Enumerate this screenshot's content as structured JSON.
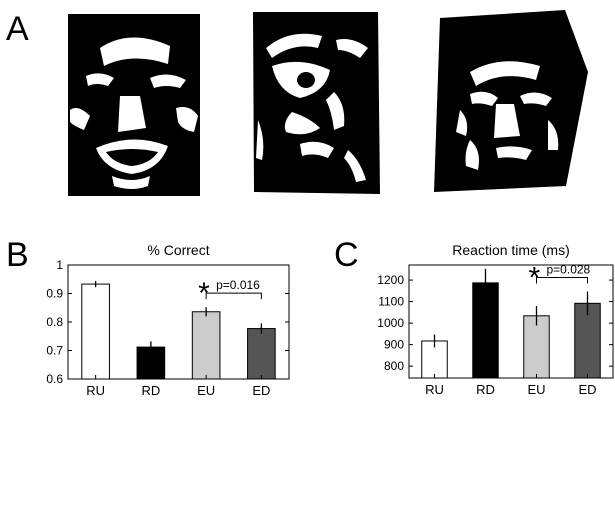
{
  "panel_labels": {
    "a": "A",
    "b": "B",
    "c": "C"
  },
  "faces": [
    {
      "name": "face-1"
    },
    {
      "name": "face-2"
    },
    {
      "name": "face-3"
    }
  ],
  "chart_data": [
    {
      "type": "bar",
      "title": "% Correct",
      "categories": [
        "RU",
        "RD",
        "EU",
        "ED"
      ],
      "values": [
        0.933,
        0.712,
        0.836,
        0.777
      ],
      "errors": [
        0.011,
        0.02,
        0.016,
        0.018
      ],
      "colors": [
        "#ffffff",
        "#000000",
        "#cccccc",
        "#555555"
      ],
      "ylim": [
        0.6,
        1.0
      ],
      "yticks": [
        0.6,
        0.7,
        0.8,
        0.9,
        1.0
      ],
      "ytick_labels": [
        "0.6",
        "0.7",
        "0.8",
        "0.9",
        "1"
      ],
      "bracket": {
        "from": "EU",
        "to": "ED",
        "star": "*",
        "label": "p=0.016"
      }
    },
    {
      "type": "bar",
      "title": "Reaction time (ms)",
      "categories": [
        "RU",
        "RD",
        "EU",
        "ED"
      ],
      "values": [
        917,
        1187,
        1034,
        1092
      ],
      "errors": [
        30,
        65,
        45,
        55
      ],
      "colors": [
        "#ffffff",
        "#000000",
        "#cccccc",
        "#555555"
      ],
      "ylim": [
        745,
        1270
      ],
      "yticks": [
        800,
        900,
        1000,
        1100,
        1200
      ],
      "ytick_labels": [
        "800",
        "900",
        "1000",
        "1100",
        "1200"
      ],
      "bracket": {
        "from": "EU",
        "to": "ED",
        "star": "*",
        "label": "p=0.028"
      }
    }
  ]
}
